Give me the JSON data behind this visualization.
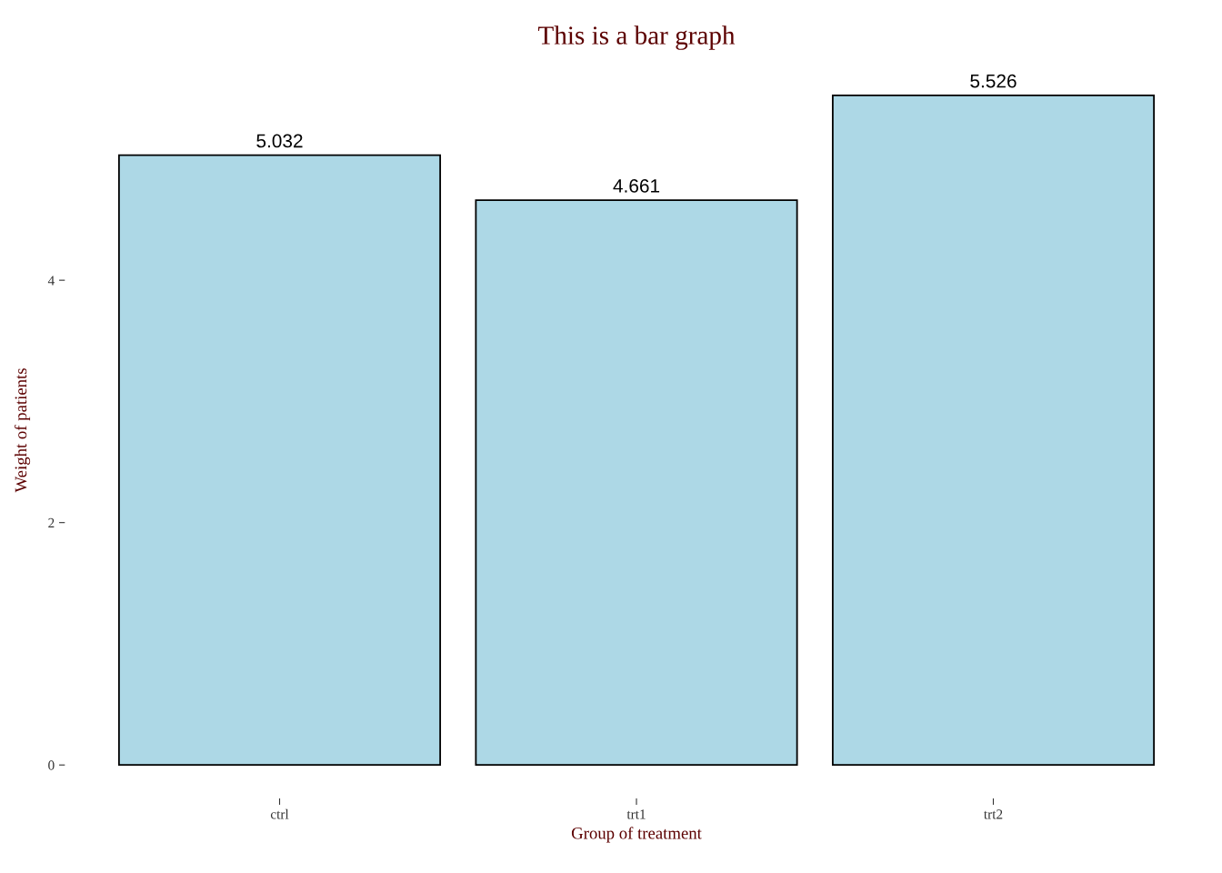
{
  "chart_data": {
    "type": "bar",
    "title": "This is a bar graph",
    "xlabel": "Group of treatment",
    "ylabel": "Weight of patients",
    "categories": [
      "ctrl",
      "trt1",
      "trt2"
    ],
    "values": [
      5.032,
      4.661,
      5.526
    ],
    "color": "#add8e6",
    "data_labels": true,
    "ylim": [
      -0.276,
      5.802
    ],
    "yticks": [
      0,
      2,
      4
    ],
    "grid": false
  }
}
